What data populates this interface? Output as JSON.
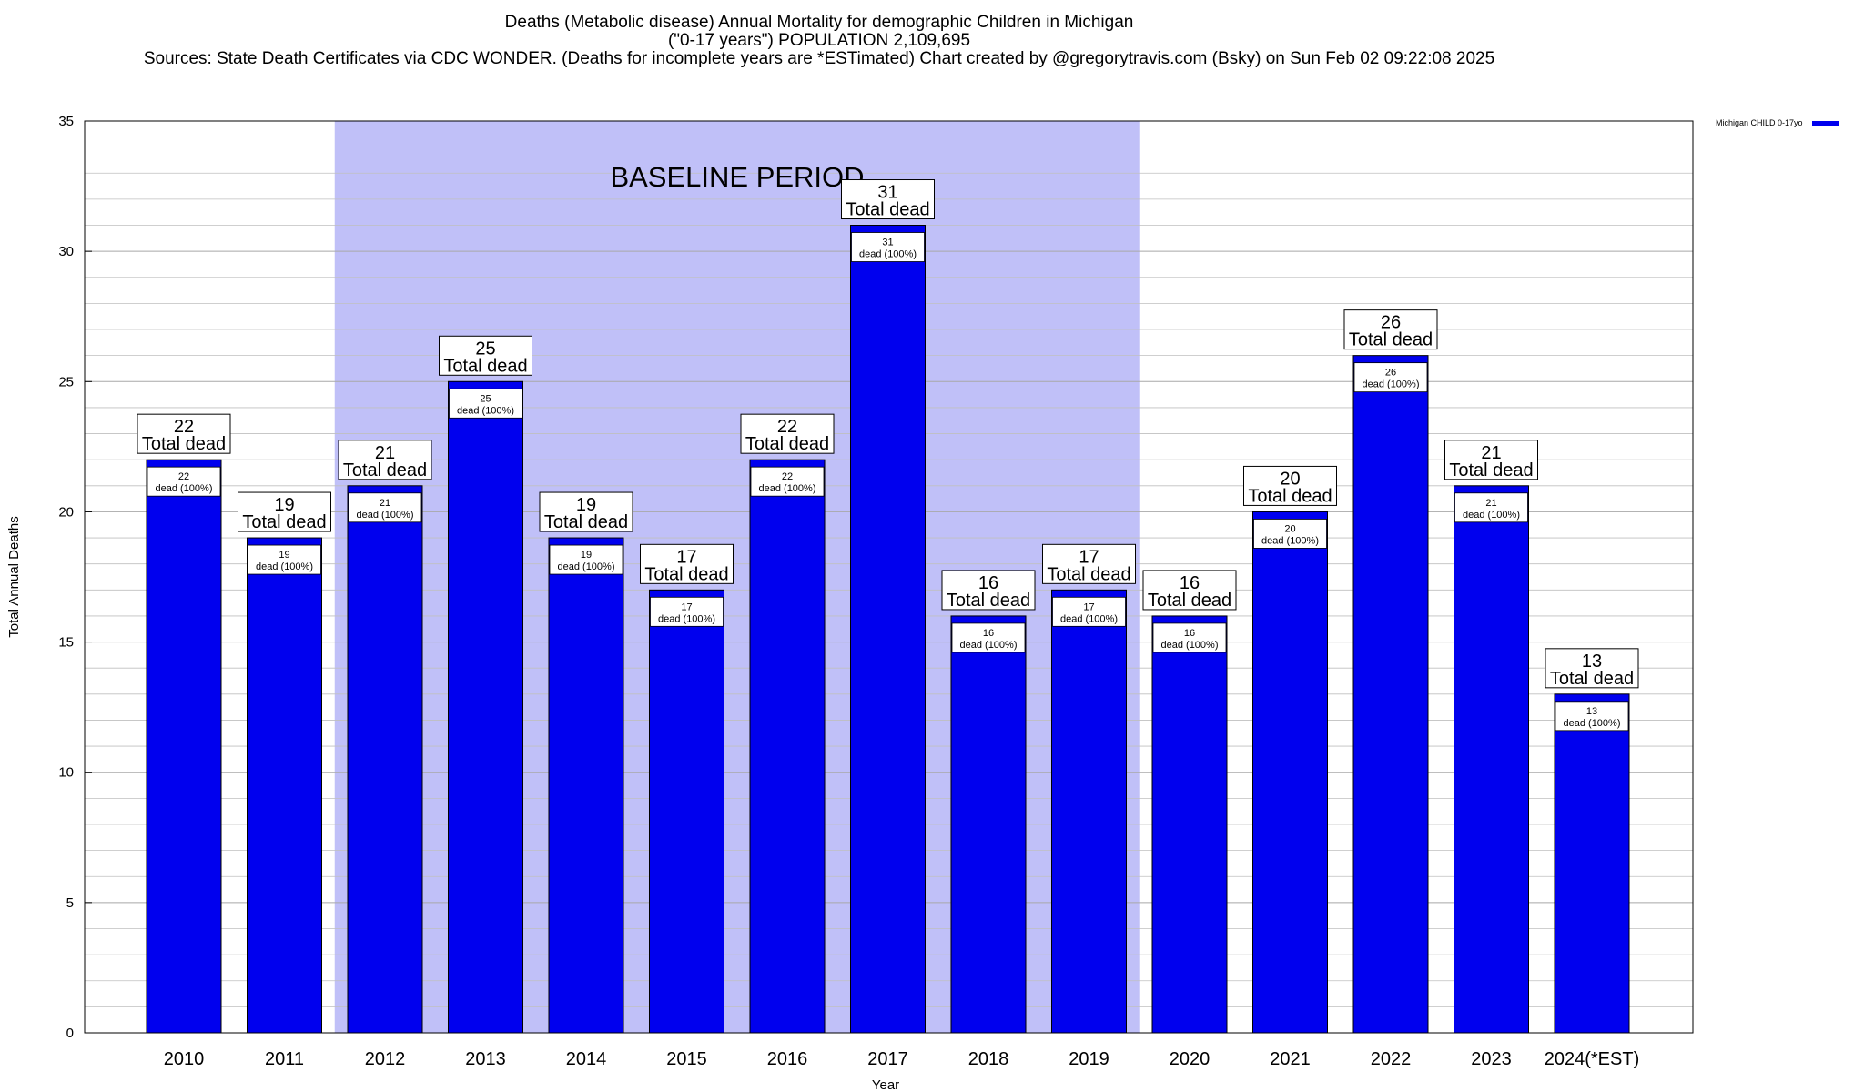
{
  "header": {
    "line1": "Deaths (Metabolic disease) Annual Mortality for demographic Children in Michigan",
    "line2": "(\"0-17 years\") POPULATION 2,109,695",
    "line3": "Sources: State Death Certificates via CDC WONDER. (Deaths for incomplete years are *ESTimated)                Chart created by @gregorytravis.com (Bsky) on Sun Feb 02 09:22:08 2025"
  },
  "legend": {
    "label": "Michigan CHILD 0-17yo"
  },
  "colors": {
    "bar": "#0000ee",
    "baseline": "#c0c0f8",
    "grid": "#bfbfbf"
  },
  "chart_data": {
    "type": "bar",
    "title": "Deaths (Metabolic disease) Annual Mortality for demographic Children in Michigan",
    "xlabel": "Year",
    "ylabel": "Total Annual Deaths",
    "ylim": [
      0,
      35
    ],
    "yticks": [
      0,
      5,
      10,
      15,
      20,
      25,
      30,
      35
    ],
    "categories": [
      "2010",
      "2011",
      "2012",
      "2013",
      "2014",
      "2015",
      "2016",
      "2017",
      "2018",
      "2019",
      "2020",
      "2021",
      "2022",
      "2023",
      "2024(*EST)"
    ],
    "series": [
      {
        "name": "Michigan CHILD 0-17yo",
        "values": [
          22,
          19,
          21,
          25,
          19,
          17,
          22,
          31,
          16,
          17,
          16,
          20,
          26,
          21,
          13
        ]
      }
    ],
    "top_label_suffix": "Total dead",
    "inner_label_suffix": "dead (100%)",
    "baseline_period": {
      "label": "BASELINE PERIOD",
      "from": "2012",
      "to": "2019"
    },
    "grid": true,
    "legend_position": "top-right"
  }
}
